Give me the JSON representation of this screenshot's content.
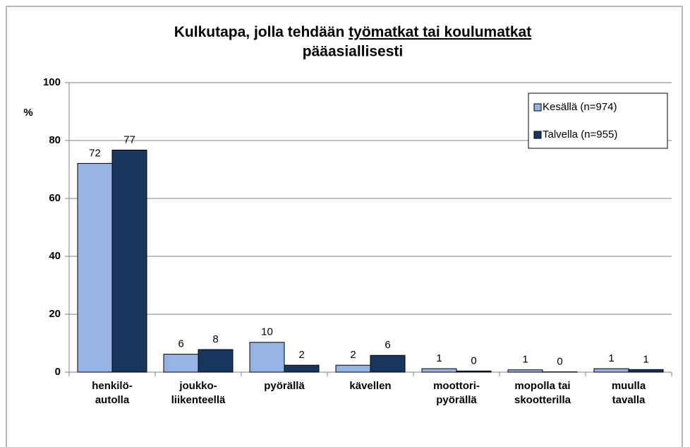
{
  "chart_data": {
    "type": "bar",
    "title": [
      "Kulkutapa, jolla tehdään",
      "työmatkat tai koulumatkat",
      "pääasiallisesti"
    ],
    "y_label": "%",
    "categories": [
      "henkilö-\nautolla",
      "joukko-\nliikenteellä",
      "pyörällä",
      "kävellen",
      "moottori-\npyörällä",
      "mopolla tai\nskootterilla",
      "muulla\ntavalla"
    ],
    "series": [
      {
        "name": "Kesällä (n=974)",
        "color": "#95b3e3",
        "values": [
          72.1,
          6.2,
          10.3,
          2.4,
          1.2,
          0.8,
          1.2
        ],
        "value_labels": [
          72,
          6,
          10,
          2,
          1,
          1,
          1
        ]
      },
      {
        "name": "Talvella (n=955)",
        "color": "#17375e",
        "values": [
          76.7,
          7.8,
          2.4,
          5.8,
          0.4,
          0.1,
          0.9
        ],
        "value_labels": [
          77,
          8,
          2,
          6,
          0,
          0,
          1
        ]
      }
    ],
    "ylim": [
      0,
      100
    ],
    "yticks": [
      0,
      20,
      40,
      60,
      80,
      100
    ],
    "grid": true,
    "legend": "upper right"
  }
}
